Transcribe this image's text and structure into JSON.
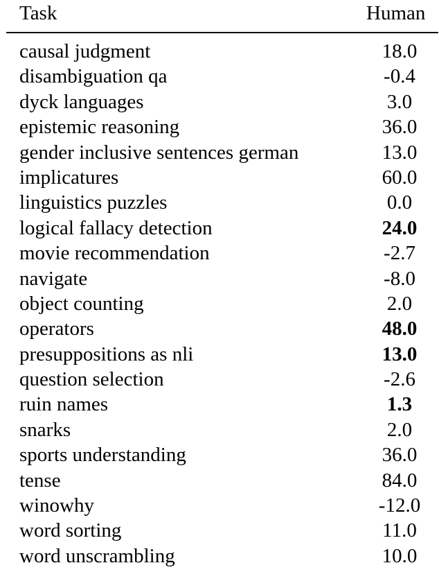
{
  "table": {
    "header": {
      "task": "Task",
      "human": "Human"
    },
    "rows": [
      {
        "task": "causal judgment",
        "human": "18.0",
        "bold": false
      },
      {
        "task": "disambiguation qa",
        "human": "-0.4",
        "bold": false
      },
      {
        "task": "dyck languages",
        "human": "3.0",
        "bold": false
      },
      {
        "task": "epistemic reasoning",
        "human": "36.0",
        "bold": false
      },
      {
        "task": "gender inclusive sentences german",
        "human": "13.0",
        "bold": false
      },
      {
        "task": "implicatures",
        "human": "60.0",
        "bold": false
      },
      {
        "task": "linguistics puzzles",
        "human": "0.0",
        "bold": false
      },
      {
        "task": "logical fallacy detection",
        "human": "24.0",
        "bold": true
      },
      {
        "task": "movie recommendation",
        "human": "-2.7",
        "bold": false
      },
      {
        "task": "navigate",
        "human": "-8.0",
        "bold": false
      },
      {
        "task": "object counting",
        "human": "2.0",
        "bold": false
      },
      {
        "task": "operators",
        "human": "48.0",
        "bold": true
      },
      {
        "task": "presuppositions as nli",
        "human": "13.0",
        "bold": true
      },
      {
        "task": "question selection",
        "human": "-2.6",
        "bold": false
      },
      {
        "task": "ruin names",
        "human": "1.3",
        "bold": true
      },
      {
        "task": "snarks",
        "human": "2.0",
        "bold": false
      },
      {
        "task": "sports understanding",
        "human": "36.0",
        "bold": false
      },
      {
        "task": "tense",
        "human": "84.0",
        "bold": false
      },
      {
        "task": "winowhy",
        "human": "-12.0",
        "bold": false
      },
      {
        "task": "word sorting",
        "human": "11.0",
        "bold": false
      },
      {
        "task": "word unscrambling",
        "human": "10.0",
        "bold": false
      }
    ]
  }
}
